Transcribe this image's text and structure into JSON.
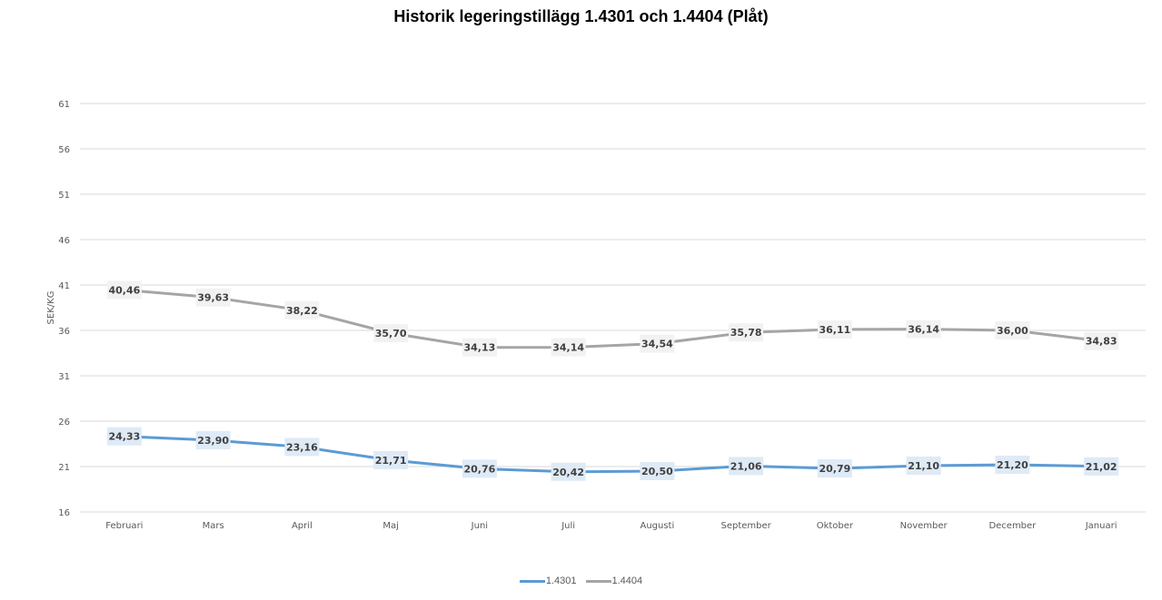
{
  "chart_data": {
    "type": "line",
    "title": "Historik legeringstillägg 1.4301 och 1.4404 (Plåt)",
    "xlabel": "",
    "ylabel": "SEK/KG",
    "ylim": [
      16,
      61
    ],
    "yticks": [
      61,
      56,
      51,
      46,
      41,
      36,
      31,
      26,
      21,
      16
    ],
    "grid": true,
    "legend_position": "bottom",
    "categories": [
      "Februari",
      "Mars",
      "April",
      "Maj",
      "Juni",
      "Juli",
      "Augusti",
      "September",
      "Oktober",
      "November",
      "December",
      "Januari"
    ],
    "series": [
      {
        "name": "1.4301",
        "color": "#5B9BD5",
        "label_bg": "#DEEAF6",
        "values": [
          24.33,
          23.9,
          23.16,
          21.71,
          20.76,
          20.42,
          20.5,
          21.06,
          20.79,
          21.1,
          21.2,
          21.02
        ],
        "labels": [
          "24,33",
          "23,90",
          "23,16",
          "21,71",
          "20,76",
          "20,42",
          "20,50",
          "21,06",
          "20,79",
          "21,10",
          "21,20",
          "21,02"
        ]
      },
      {
        "name": "1.4404",
        "color": "#A5A5A5",
        "label_bg": "#F2F2F2",
        "values": [
          40.46,
          39.63,
          38.22,
          35.7,
          34.13,
          34.14,
          34.54,
          35.78,
          36.11,
          36.14,
          36.0,
          34.83
        ],
        "labels": [
          "40,46",
          "39,63",
          "38,22",
          "35,70",
          "34,13",
          "34,14",
          "34,54",
          "35,78",
          "36,11",
          "36,14",
          "36,00",
          "34,83"
        ]
      }
    ]
  },
  "colors": {
    "gridline": "#D9D9D9",
    "axis_text": "#595959",
    "label_text": "#404040"
  }
}
